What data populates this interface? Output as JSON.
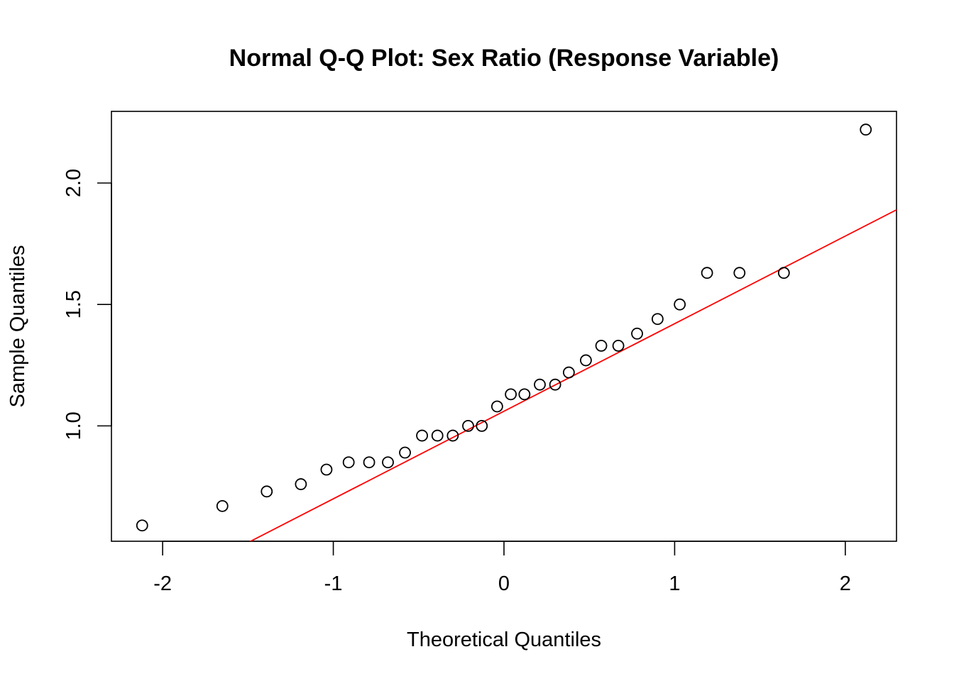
{
  "chart_data": {
    "type": "scatter",
    "title": "Normal Q-Q Plot: Sex Ratio (Response Variable)",
    "xlabel": "Theoretical Quantiles",
    "ylabel": "Sample Quantiles",
    "xlim": [
      -2.3,
      2.3
    ],
    "ylim": [
      0.525,
      2.295
    ],
    "grid": false,
    "x_ticks": [
      -2,
      -1,
      0,
      1,
      2
    ],
    "x_tick_labels": [
      "-2",
      "-1",
      "0",
      "1",
      "2"
    ],
    "y_ticks": [
      1.0,
      1.5,
      2.0
    ],
    "y_tick_labels": [
      "1.0",
      "1.5",
      "2.0"
    ],
    "point_color": "#000000",
    "line_color": "#ff0000",
    "points": [
      {
        "x": -2.12,
        "y": 0.59
      },
      {
        "x": -1.65,
        "y": 0.67
      },
      {
        "x": -1.39,
        "y": 0.73
      },
      {
        "x": -1.19,
        "y": 0.76
      },
      {
        "x": -1.04,
        "y": 0.82
      },
      {
        "x": -0.91,
        "y": 0.85
      },
      {
        "x": -0.79,
        "y": 0.85
      },
      {
        "x": -0.68,
        "y": 0.85
      },
      {
        "x": -0.58,
        "y": 0.89
      },
      {
        "x": -0.48,
        "y": 0.96
      },
      {
        "x": -0.39,
        "y": 0.96
      },
      {
        "x": -0.3,
        "y": 0.96
      },
      {
        "x": -0.21,
        "y": 1.0
      },
      {
        "x": -0.13,
        "y": 1.0
      },
      {
        "x": -0.04,
        "y": 1.08
      },
      {
        "x": 0.04,
        "y": 1.13
      },
      {
        "x": 0.12,
        "y": 1.13
      },
      {
        "x": 0.21,
        "y": 1.17
      },
      {
        "x": 0.3,
        "y": 1.17
      },
      {
        "x": 0.38,
        "y": 1.22
      },
      {
        "x": 0.48,
        "y": 1.27
      },
      {
        "x": 0.57,
        "y": 1.33
      },
      {
        "x": 0.67,
        "y": 1.33
      },
      {
        "x": 0.78,
        "y": 1.38
      },
      {
        "x": 0.9,
        "y": 1.44
      },
      {
        "x": 1.03,
        "y": 1.5
      },
      {
        "x": 1.19,
        "y": 1.63
      },
      {
        "x": 1.38,
        "y": 1.63
      },
      {
        "x": 1.64,
        "y": 1.63
      },
      {
        "x": 2.12,
        "y": 2.22
      }
    ],
    "reference_line": {
      "intercept": 1.0603,
      "slope": 0.3606
    }
  }
}
